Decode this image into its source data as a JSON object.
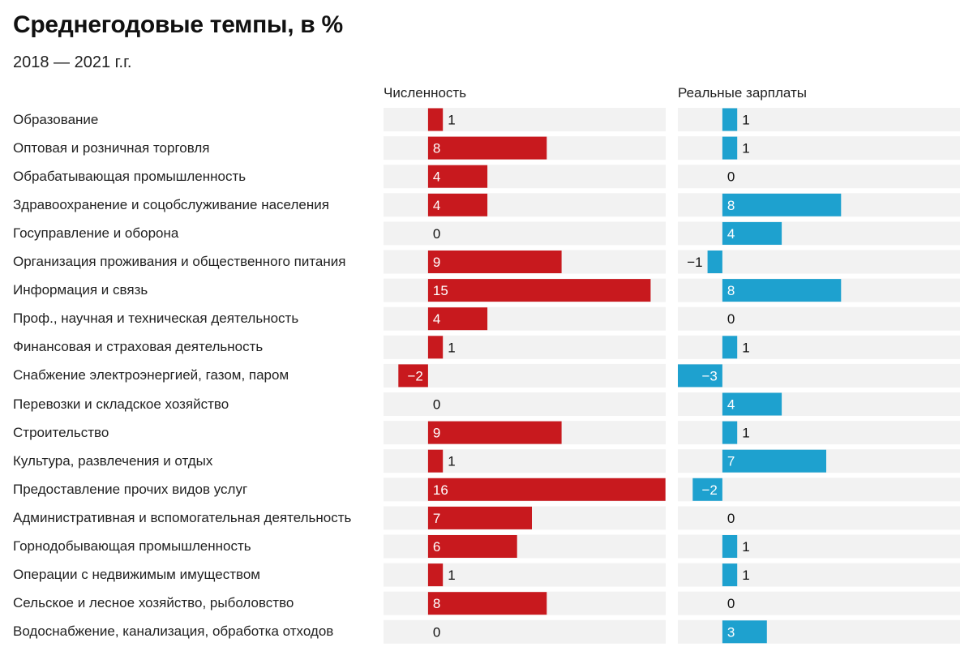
{
  "title": "Среднегодовые темпы, в %",
  "subtitle": "2018 — 2021 г.г.",
  "colors": {
    "numbers": "#c8191e",
    "wages": "#1ea1cf",
    "background": "#f2f2f2",
    "label_on_bar": "#ffffff",
    "label_off_bar": "#111111"
  },
  "chart_data": [
    {
      "type": "bar",
      "orientation": "horizontal",
      "title": "Численность",
      "categories": [
        "Образование",
        "Оптовая и розничная торговля",
        "Обрабатывающая промышленность",
        "Здравоохранение и соцобслуживание населения",
        "Госуправление и оборона",
        "Организация проживания и общественного питания",
        "Информация и связь",
        "Проф., научная и техническая деятельность",
        "Финансовая и страховая деятельность",
        "Снабжение электроэнергией, газом, паром",
        "Перевозки и складское хозяйство",
        "Строительство",
        "Культура, развлечения и отдых",
        "Предоставление прочих видов услуг",
        "Административная и вспомогательная деятельность",
        "Горнодобывающая промышленность",
        "Операции с недвижимым имуществом",
        "Сельское и лесное хозяйство, рыболовство",
        "Водоснабжение, канализация, обработка отходов"
      ],
      "values": [
        1,
        8,
        4,
        4,
        0,
        9,
        15,
        4,
        1,
        -2,
        0,
        9,
        1,
        16,
        7,
        6,
        1,
        8,
        0
      ],
      "value_labels": [
        "1",
        "8",
        "4",
        "4",
        "0",
        "9",
        "15",
        "4",
        "1",
        "−2",
        "0",
        "9",
        "1",
        "16",
        "7",
        "6",
        "1",
        "8",
        "0"
      ],
      "xlim": [
        -3,
        16
      ],
      "color": "#c8191e"
    },
    {
      "type": "bar",
      "orientation": "horizontal",
      "title": "Реальные зарплаты",
      "values": [
        1,
        1,
        0,
        8,
        4,
        -1,
        8,
        0,
        1,
        -3,
        4,
        1,
        7,
        -2,
        0,
        1,
        1,
        0,
        3
      ],
      "value_labels": [
        "1",
        "1",
        "0",
        "8",
        "4",
        "−1",
        "8",
        "0",
        "1",
        "−3",
        "4",
        "1",
        "7",
        "−2",
        "0",
        "1",
        "1",
        "0",
        "3"
      ],
      "xlim": [
        -3,
        16
      ],
      "color": "#1ea1cf"
    }
  ]
}
